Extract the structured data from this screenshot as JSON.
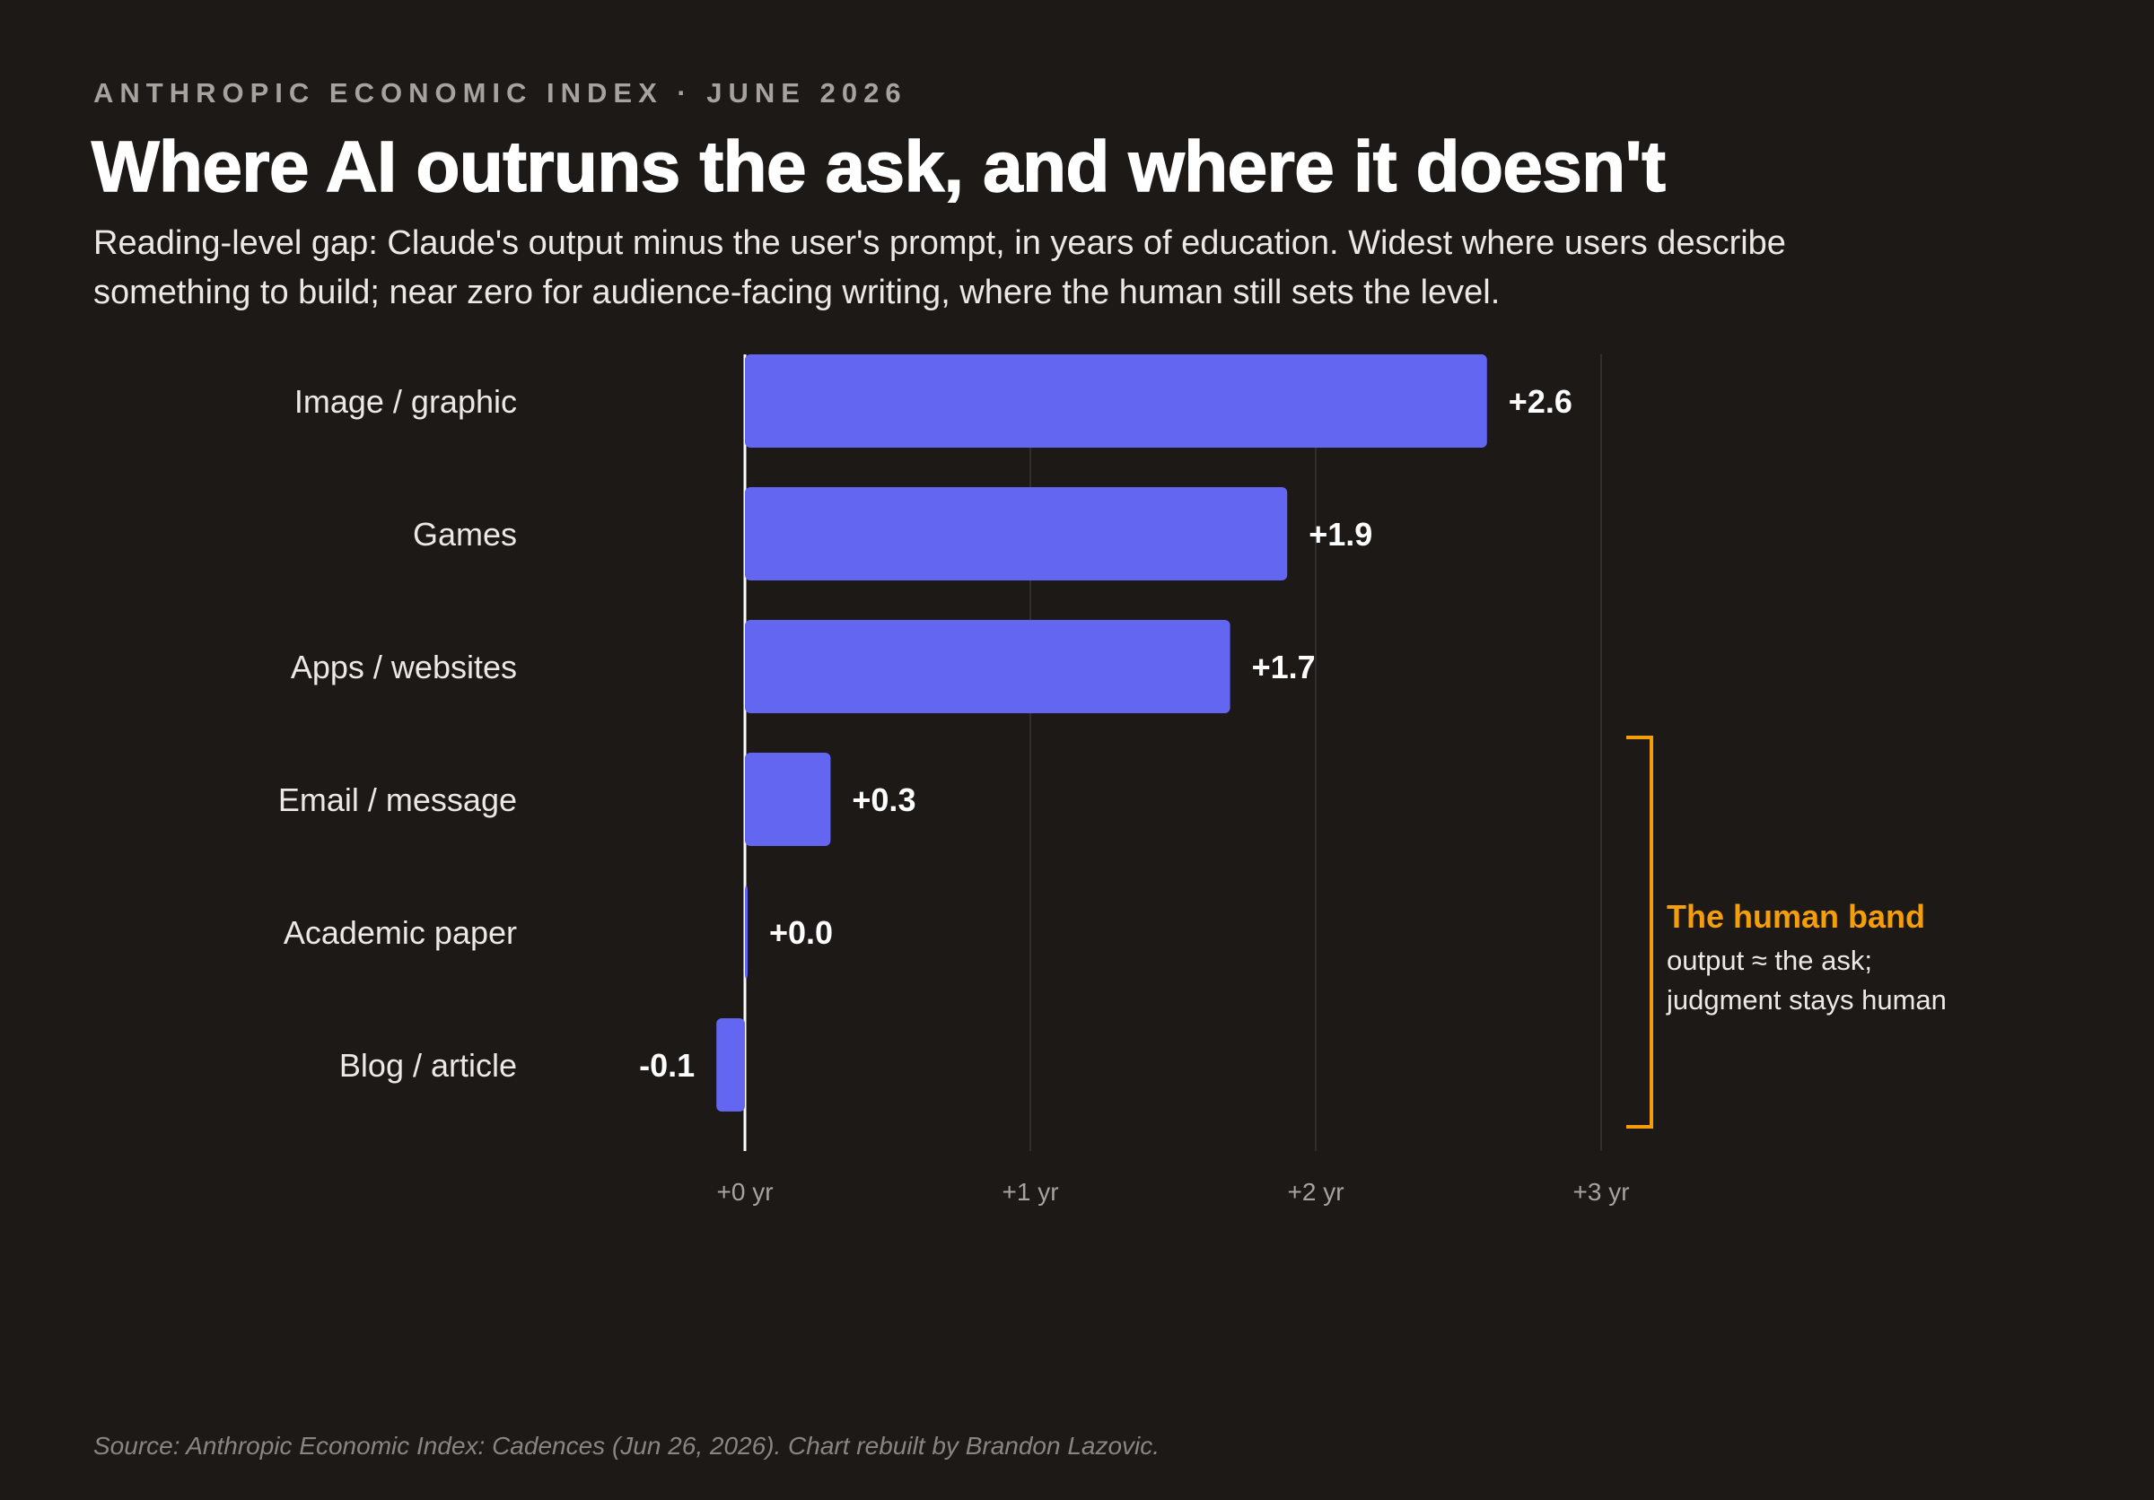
{
  "header": {
    "eyebrow": "ANTHROPIC ECONOMIC INDEX · JUNE 2026",
    "title": "Where AI outruns the ask, and where it doesn't",
    "subtitle": "Reading-level gap: Claude's output minus the user's prompt, in years of education. Widest where users describe something to build; near zero for audience-facing writing, where the human still sets the level."
  },
  "chart_data": {
    "type": "bar",
    "orientation": "horizontal",
    "categories": [
      "Image / graphic",
      "Games",
      "Apps / websites",
      "Email / message",
      "Academic paper",
      "Blog / article"
    ],
    "values": [
      2.6,
      1.9,
      1.7,
      0.3,
      0.0,
      -0.1
    ],
    "value_labels": [
      "+2.6",
      "+1.9",
      "+1.7",
      "+0.3",
      "+0.0",
      "-0.1"
    ],
    "x_ticks": [
      0,
      1,
      2,
      3
    ],
    "x_tick_labels": [
      "+0 yr",
      "+1 yr",
      "+2 yr",
      "+3 yr"
    ],
    "xlim": [
      -0.1,
      3
    ],
    "grid": true,
    "bar_color": "#6366f1",
    "annotation": {
      "title": "The human band",
      "lines": [
        "output ≈ the ask;",
        "judgment stays human"
      ],
      "covers": [
        "Email / message",
        "Academic paper",
        "Blog / article"
      ],
      "color": "#f59e0b"
    }
  },
  "footer": {
    "source": "Source: Anthropic Economic Index: Cadences (Jun 26, 2026). Chart rebuilt by Brandon Lazovic."
  }
}
